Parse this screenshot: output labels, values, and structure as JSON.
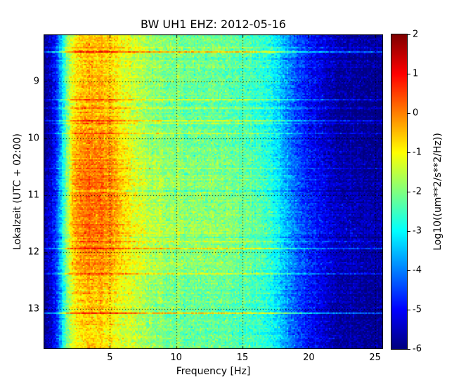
{
  "chart_data": {
    "type": "heatmap",
    "title": "BW UH1 EHZ: 2012-05-16",
    "xlabel": "Frequency [Hz]",
    "ylabel": "Lokalzeit (UTC + 02:00)",
    "x_axis": {
      "range_hz": [
        0,
        25.6
      ],
      "ticks": [
        5,
        10,
        15,
        20,
        25
      ]
    },
    "y_axis": {
      "range_hours": [
        8.17,
        13.7
      ],
      "ticks": [
        9,
        10,
        11,
        12,
        13
      ],
      "orientation": "time-increases-downward"
    },
    "colorbar": {
      "label": "Log10((um**2/s**2/Hz))",
      "range": [
        -6,
        2
      ],
      "ticks": [
        2,
        1,
        0,
        -1,
        -2,
        -3,
        -4,
        -5,
        -6
      ],
      "colormap": "jet"
    },
    "grid": {
      "style": "dotted",
      "color": "#000000"
    },
    "spectral_profile": {
      "frequency_hz": [
        0.1,
        0.4,
        0.8,
        1.1,
        1.5,
        1.9,
        2.3,
        2.8,
        3.5,
        4.5,
        5.2,
        6.0,
        7.0,
        8.5,
        10.0,
        12.0,
        14.0,
        16.0,
        17.0,
        18.0,
        19.0,
        20.0,
        21.0,
        22.0,
        23.5,
        25.6
      ],
      "log10_power": [
        -5.9,
        -5.6,
        -5.0,
        -4.2,
        -2.9,
        -1.6,
        -0.9,
        -0.6,
        -0.45,
        -0.5,
        -0.75,
        -1.1,
        -1.5,
        -1.85,
        -2.05,
        -2.15,
        -2.2,
        -2.45,
        -2.8,
        -3.5,
        -4.3,
        -4.8,
        -5.3,
        -5.6,
        -5.75,
        -5.85
      ]
    },
    "texture": {
      "pixel_noise_std": 0.3,
      "column_noise_std": 0.08,
      "row_streak_probability": 0.045,
      "row_streak_amplitude": [
        0.4,
        1.8
      ],
      "band_modulation_range_hz": [
        2.0,
        6.5
      ]
    }
  }
}
